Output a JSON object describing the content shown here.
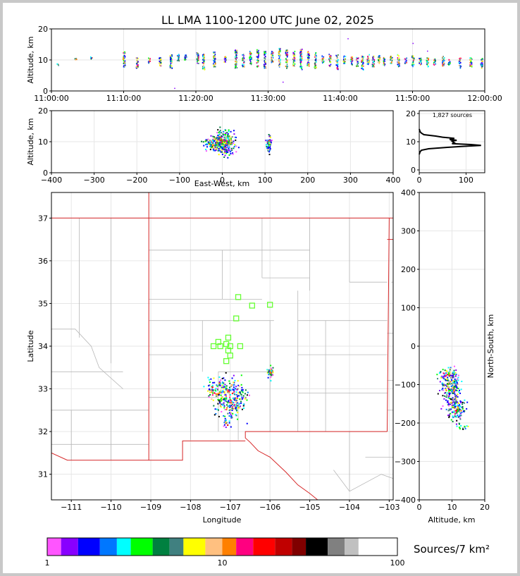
{
  "title": "LL LMA 1100-1200 UTC June 02, 2025",
  "colors": {
    "frame": "#c8c8c8",
    "state_border": "#d62728",
    "county_border": "#b8b8b8",
    "station": "#66ff33",
    "grid": "#e6e6e6",
    "scale": [
      "#ff55ff",
      "#8800ff",
      "#0000ff",
      "#0077ff",
      "#00ffff",
      "#00ff00",
      "#008040",
      "#408080",
      "#ffff00",
      "#ffc080",
      "#ff8000",
      "#ff0080",
      "#ff0000",
      "#c00000",
      "#800000",
      "#000000",
      "#808080",
      "#c0c0c0",
      "#ffffff"
    ]
  },
  "chart_data": [
    {
      "id": "time_height",
      "type": "scatter",
      "xlabel": "",
      "ylabel": "Altitude, km",
      "xlim": [
        0,
        60
      ],
      "ylim": [
        0,
        20
      ],
      "x_ticks": [
        "11:00:00",
        "11:10:00",
        "11:20:00",
        "11:30:00",
        "11:40:00",
        "11:50:00",
        "12:00:00"
      ],
      "y_ticks": [
        "0",
        "10",
        "20"
      ],
      "grid": true,
      "bursts": [
        {
          "t": 0.8,
          "lo": 8.5,
          "hi": 9.0
        },
        {
          "t": 3.3,
          "lo": 10.0,
          "hi": 10.7
        },
        {
          "t": 5.5,
          "lo": 10.5,
          "hi": 11.2
        },
        {
          "t": 10.0,
          "lo": 8.0,
          "hi": 13.0
        },
        {
          "t": 11.8,
          "lo": 7.5,
          "hi": 11.0
        },
        {
          "t": 13.5,
          "lo": 9.0,
          "hi": 10.8
        },
        {
          "t": 15.0,
          "lo": 8.0,
          "hi": 11.0
        },
        {
          "t": 16.5,
          "lo": 7.5,
          "hi": 12.0
        },
        {
          "t": 17.5,
          "lo": 9.5,
          "hi": 12.0
        },
        {
          "t": 18.5,
          "lo": 10.0,
          "hi": 12.0
        },
        {
          "t": 20.2,
          "lo": 9.0,
          "hi": 12.5
        },
        {
          "t": 21.0,
          "lo": 7.0,
          "hi": 12.0
        },
        {
          "t": 22.5,
          "lo": 8.0,
          "hi": 13.0
        },
        {
          "t": 24.0,
          "lo": 9.5,
          "hi": 11.5
        },
        {
          "t": 25.5,
          "lo": 7.5,
          "hi": 13.5
        },
        {
          "t": 26.5,
          "lo": 8.0,
          "hi": 12.0
        },
        {
          "t": 27.5,
          "lo": 8.5,
          "hi": 13.0
        },
        {
          "t": 28.5,
          "lo": 8.0,
          "hi": 13.5
        },
        {
          "t": 29.5,
          "lo": 7.5,
          "hi": 13.0
        },
        {
          "t": 30.5,
          "lo": 9.0,
          "hi": 13.0
        },
        {
          "t": 31.5,
          "lo": 8.0,
          "hi": 14.0
        },
        {
          "t": 32.5,
          "lo": 7.5,
          "hi": 13.5
        },
        {
          "t": 33.5,
          "lo": 8.0,
          "hi": 13.0
        },
        {
          "t": 34.5,
          "lo": 7.0,
          "hi": 14.0
        },
        {
          "t": 35.5,
          "lo": 8.0,
          "hi": 13.0
        },
        {
          "t": 36.5,
          "lo": 7.5,
          "hi": 12.5
        },
        {
          "t": 37.5,
          "lo": 9.0,
          "hi": 11.5
        },
        {
          "t": 38.5,
          "lo": 8.0,
          "hi": 12.0
        },
        {
          "t": 39.5,
          "lo": 7.0,
          "hi": 12.0
        },
        {
          "t": 40.5,
          "lo": 9.0,
          "hi": 11.5
        },
        {
          "t": 41.5,
          "lo": 8.5,
          "hi": 11.5
        },
        {
          "t": 42.3,
          "lo": 8.0,
          "hi": 11.0
        },
        {
          "t": 43.0,
          "lo": 7.0,
          "hi": 11.5
        },
        {
          "t": 43.8,
          "lo": 8.5,
          "hi": 12.0
        },
        {
          "t": 44.5,
          "lo": 8.0,
          "hi": 11.5
        },
        {
          "t": 45.3,
          "lo": 9.0,
          "hi": 12.0
        },
        {
          "t": 46.0,
          "lo": 8.5,
          "hi": 11.0
        },
        {
          "t": 47.0,
          "lo": 9.0,
          "hi": 11.5
        },
        {
          "t": 48.0,
          "lo": 8.0,
          "hi": 12.0
        },
        {
          "t": 49.0,
          "lo": 9.0,
          "hi": 11.0
        },
        {
          "t": 50.0,
          "lo": 8.0,
          "hi": 11.5
        },
        {
          "t": 51.0,
          "lo": 8.5,
          "hi": 11.0
        },
        {
          "t": 52.0,
          "lo": 8.0,
          "hi": 11.0
        },
        {
          "t": 53.0,
          "lo": 8.5,
          "hi": 10.5
        },
        {
          "t": 54.2,
          "lo": 8.0,
          "hi": 11.5
        },
        {
          "t": 55.0,
          "lo": 8.5,
          "hi": 10.5
        },
        {
          "t": 56.5,
          "lo": 7.5,
          "hi": 11.0
        },
        {
          "t": 58.0,
          "lo": 8.0,
          "hi": 11.0
        },
        {
          "t": 59.5,
          "lo": 7.5,
          "hi": 11.0
        }
      ],
      "isolated": [
        {
          "t": 17.0,
          "z": 1.0
        },
        {
          "t": 41.0,
          "z": 17.0
        },
        {
          "t": 50.0,
          "z": 15.5
        },
        {
          "t": 52.0,
          "z": 13.0
        },
        {
          "t": 32.0,
          "z": 3.0
        }
      ]
    },
    {
      "id": "ew_height",
      "type": "scatter",
      "xlabel": "East-West, km",
      "ylabel": "Altitude, km",
      "xlim": [
        -400,
        400
      ],
      "ylim": [
        0,
        20
      ],
      "x_ticks": [
        "−400",
        "−300",
        "−200",
        "−100",
        "0",
        "100",
        "200",
        "300",
        "400"
      ],
      "y_ticks": [
        "0",
        "10",
        "20"
      ],
      "grid": true,
      "clusters": [
        {
          "x": 0,
          "y": 10,
          "sx": 14,
          "sy": 1.8,
          "n": 320
        },
        {
          "x": -25,
          "y": 9.5,
          "sx": 10,
          "sy": 1.0,
          "n": 60
        },
        {
          "x": 108,
          "y": 9.5,
          "sx": 3,
          "sy": 1.4,
          "n": 70
        }
      ]
    },
    {
      "id": "alt_histogram",
      "type": "line",
      "label": "1,827 sources",
      "xlim": [
        0,
        140
      ],
      "ylim": [
        -1,
        21
      ],
      "x_ticks": [
        "0",
        "100"
      ],
      "y_ticks": [
        "0",
        "10",
        "20"
      ],
      "grid": true,
      "points": [
        [
          0,
          5.5
        ],
        [
          2,
          6.5
        ],
        [
          5,
          7.0
        ],
        [
          20,
          7.5
        ],
        [
          60,
          8.0
        ],
        [
          90,
          8.3
        ],
        [
          132,
          8.7
        ],
        [
          110,
          9.0
        ],
        [
          70,
          9.3
        ],
        [
          75,
          9.6
        ],
        [
          70,
          10.2
        ],
        [
          80,
          10.5
        ],
        [
          65,
          10.8
        ],
        [
          75,
          11.2
        ],
        [
          50,
          11.6
        ],
        [
          35,
          12.0
        ],
        [
          10,
          12.5
        ],
        [
          5,
          13.0
        ],
        [
          2,
          13.5
        ],
        [
          0,
          14.5
        ]
      ]
    },
    {
      "id": "plan_view",
      "type": "scatter",
      "xlabel": "Longitude",
      "ylabel": "Latitude",
      "xlim": [
        -111.5,
        -102.9
      ],
      "ylim": [
        30.4,
        37.6
      ],
      "x_ticks": [
        "−111",
        "−110",
        "−109",
        "−108",
        "−107",
        "−106",
        "−105",
        "−104",
        "−103"
      ],
      "y_ticks": [
        "31",
        "32",
        "33",
        "34",
        "35",
        "36",
        "37"
      ],
      "grid": true,
      "clusters": [
        {
          "x": -107.0,
          "y": 32.8,
          "sx": 0.18,
          "sy": 0.25,
          "n": 260
        },
        {
          "x": -107.4,
          "y": 33.0,
          "sx": 0.12,
          "sy": 0.15,
          "n": 60
        },
        {
          "x": -107.1,
          "y": 32.2,
          "sx": 0.05,
          "sy": 0.05,
          "n": 15
        },
        {
          "x": -106.0,
          "y": 33.4,
          "sx": 0.04,
          "sy": 0.07,
          "n": 40
        }
      ],
      "stations": [
        [
          -106.8,
          35.15
        ],
        [
          -106.45,
          34.95
        ],
        [
          -106.0,
          34.97
        ],
        [
          -106.85,
          34.65
        ],
        [
          -107.05,
          34.2
        ],
        [
          -107.3,
          34.1
        ],
        [
          -107.1,
          34.05
        ],
        [
          -107.42,
          34.0
        ],
        [
          -107.25,
          34.0
        ],
        [
          -107.0,
          34.0
        ],
        [
          -106.75,
          34.0
        ],
        [
          -107.05,
          33.9
        ],
        [
          -107.0,
          33.78
        ],
        [
          -107.1,
          33.65
        ]
      ]
    },
    {
      "id": "ns_height",
      "type": "scatter",
      "xlabel": "Altitude, km",
      "ylabel": "North-South, km",
      "xlim": [
        0,
        20
      ],
      "ylim": [
        -400,
        400
      ],
      "x_ticks": [
        "0",
        "10",
        "20"
      ],
      "y_ticks": [
        "−400",
        "−300",
        "−200",
        "−100",
        "0",
        "100",
        "200",
        "300",
        "400"
      ],
      "grid": true,
      "clusters": [
        {
          "x": 9.5,
          "y": -105,
          "sx": 1.5,
          "sy": 22,
          "n": 200
        },
        {
          "x": 11.0,
          "y": -160,
          "sx": 1.5,
          "sy": 15,
          "n": 120
        },
        {
          "x": 8.5,
          "y": -70,
          "sx": 1.5,
          "sy": 10,
          "n": 50
        },
        {
          "x": 13.0,
          "y": -205,
          "sx": 1.0,
          "sy": 5,
          "n": 15
        }
      ]
    }
  ],
  "colorbar": {
    "ticks": [
      "1",
      "10",
      "100"
    ],
    "label": "Sources/7 km²"
  }
}
